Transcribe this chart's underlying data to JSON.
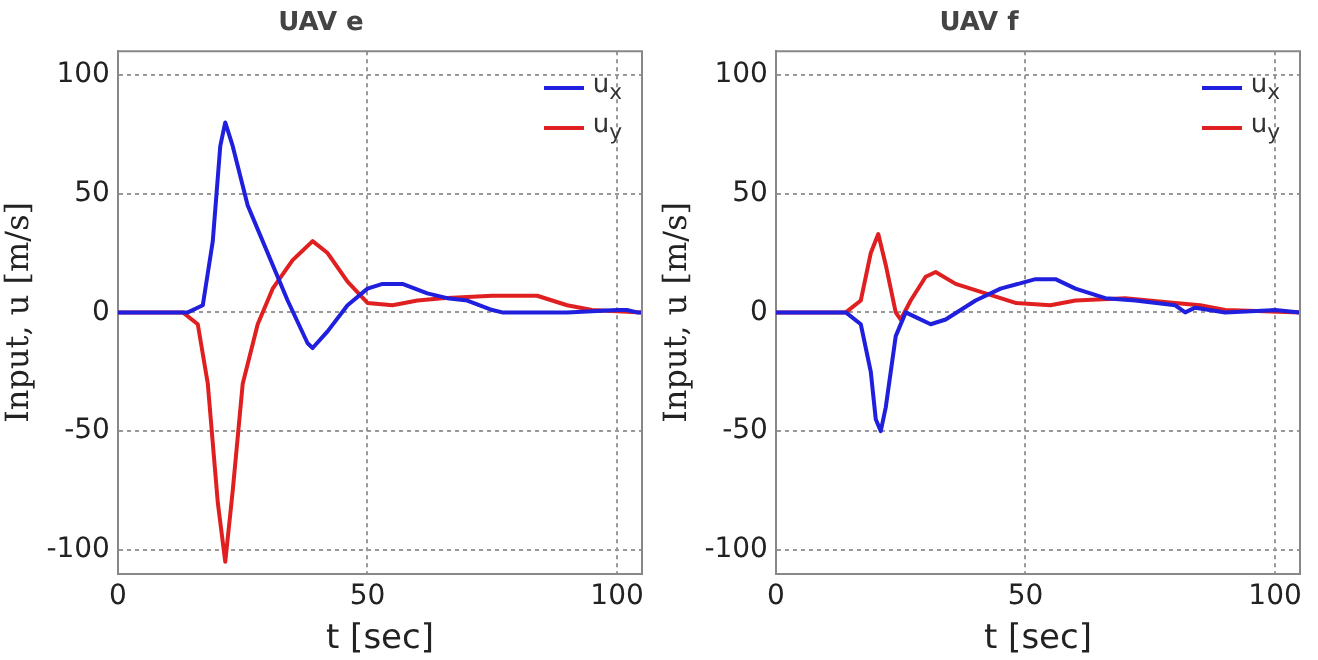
{
  "chart_data": [
    {
      "type": "line",
      "title": "UAV e",
      "xlabel": "t [sec]",
      "ylabel": "Input, u [m/s]",
      "xlim": [
        0,
        105
      ],
      "xticks": [
        0,
        50,
        100
      ],
      "ylim": [
        -110,
        110
      ],
      "yticks": [
        -100,
        -50,
        0,
        50,
        100
      ],
      "grid": true,
      "legend": "top right",
      "marker": "none",
      "line_style": "solid",
      "series": [
        {
          "name": "u$_{x}$",
          "color": "#1f1fdd",
          "x": [
            0,
            14,
            17,
            19,
            20.5,
            21.5,
            23,
            26,
            30,
            34,
            38,
            39,
            42,
            46,
            50,
            53,
            57,
            62,
            66,
            70,
            75,
            77,
            90,
            100,
            102,
            104,
            105
          ],
          "values": [
            0,
            0,
            3,
            30,
            70,
            80,
            70,
            45,
            25,
            5,
            -13,
            -15,
            -8,
            3,
            10,
            12,
            12,
            8,
            6,
            5,
            1,
            0,
            0,
            1,
            1,
            0,
            0
          ]
        },
        {
          "name": "u$_{y}$",
          "color": "#e02020",
          "x": [
            0,
            13,
            16,
            18,
            20,
            21.5,
            23,
            25,
            28,
            31,
            35,
            39,
            42,
            46,
            50,
            55,
            60,
            65,
            75,
            84,
            90,
            95,
            105
          ],
          "values": [
            0,
            0,
            -5,
            -30,
            -80,
            -105,
            -75,
            -30,
            -5,
            10,
            22,
            30,
            25,
            13,
            4,
            3,
            5,
            6,
            7,
            7,
            3,
            1,
            0
          ]
        }
      ]
    },
    {
      "type": "line",
      "title": "UAV f",
      "xlabel": "t [sec]",
      "ylabel": "Input, u [m/s]",
      "xlim": [
        0,
        105
      ],
      "xticks": [
        0,
        50,
        100
      ],
      "ylim": [
        -110,
        110
      ],
      "yticks": [
        -100,
        -50,
        0,
        50,
        100
      ],
      "grid": true,
      "legend": "top right",
      "marker": "none",
      "line_style": "solid",
      "series": [
        {
          "name": "u$_{x}$",
          "color": "#1f1fdd",
          "x": [
            0,
            14,
            17,
            19,
            20,
            21,
            22,
            24,
            26,
            28,
            31,
            34,
            40,
            45,
            52,
            56,
            60,
            66,
            72,
            80,
            82,
            84,
            90,
            100,
            105
          ],
          "values": [
            0,
            0,
            -5,
            -25,
            -45,
            -50,
            -40,
            -10,
            0,
            -2,
            -5,
            -3,
            5,
            10,
            14,
            14,
            10,
            6,
            5,
            3,
            0,
            2,
            0,
            1,
            0
          ]
        },
        {
          "name": "u$_{y}$",
          "color": "#e02020",
          "x": [
            0,
            14,
            17,
            19,
            20.5,
            22,
            24,
            25,
            27,
            30,
            32,
            36,
            42,
            48,
            55,
            60,
            70,
            80,
            85,
            90,
            105
          ],
          "values": [
            0,
            0,
            5,
            25,
            33,
            20,
            0,
            -3,
            5,
            15,
            17,
            12,
            8,
            4,
            3,
            5,
            6,
            4,
            3,
            1,
            0
          ]
        }
      ]
    }
  ]
}
